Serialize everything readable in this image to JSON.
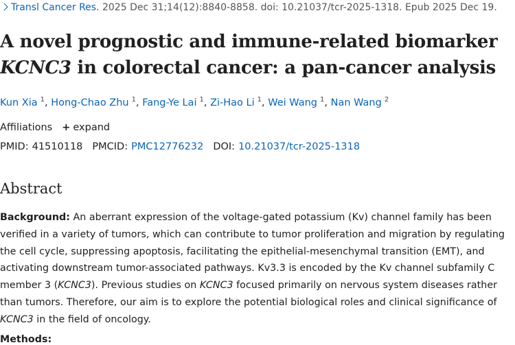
{
  "citation": {
    "journal": "Transl Cancer Res.",
    "details": " 2025 Dec 31;14(12):8840-8858. doi: 10.21037/tcr-2025-1318. Epub 2025 Dec 19."
  },
  "title": [
    "A novel prognostic and immune-related biomarker",
    "KCNC3",
    " in colorectal cancer: a pan-cancer analysis"
  ],
  "authors": {
    "separator": ", ",
    "list": [
      {
        "name": "Kun Xia",
        "sup": "1"
      },
      {
        "name": "Hong-Chao Zhu",
        "sup": "1"
      },
      {
        "name": "Fang-Ye Lai",
        "sup": "1"
      },
      {
        "name": "Zi-Hao Li",
        "sup": "1"
      },
      {
        "name": "Wei Wang",
        "sup": "1"
      },
      {
        "name": "Nan Wang",
        "sup": "2"
      }
    ]
  },
  "affiliations": {
    "label": "Affiliations",
    "expand": "expand"
  },
  "ids": {
    "pmid_label": "PMID:",
    "pmid": "41510118",
    "pmcid_label": "PMCID:",
    "pmcid": "PMC12776232",
    "doi_label": "DOI:",
    "doi": "10.21037/tcr-2025-1318"
  },
  "abstract": {
    "heading": "Abstract",
    "background_label": "Background:",
    "background": [
      " An aberrant expression of the voltage-gated potassium (Kv) channel family has been verified in a variety of tumors, which can contribute to tumor proliferation and migration by regulating the cell cycle, suppressing apoptosis, facilitating the epithelial-mesenchymal transition (EMT), and activating downstream tumor-associated pathways. Kv3.3 is encoded by the Kv channel subfamily C member 3 (",
      "KCNC3",
      "). Previous studies on ",
      "KCNC3",
      " focused primarily on nervous system diseases rather than tumors. Therefore, our aim is to explore the potential biological roles and clinical significance of ",
      "KCNC3",
      " in the field of oncology."
    ],
    "methods_label": "Methods:"
  }
}
